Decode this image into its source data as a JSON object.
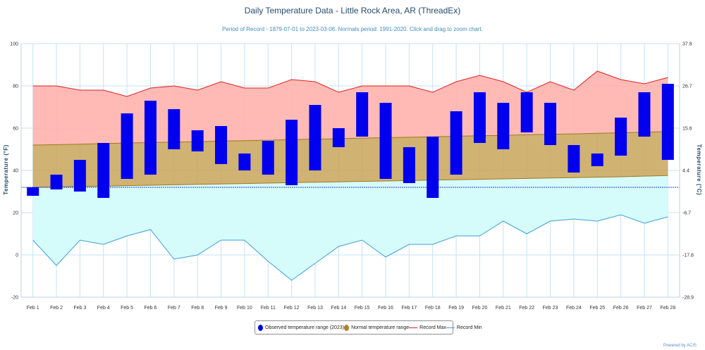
{
  "header": {
    "title": "Daily Temperature Data - Little Rock Area, AR (ThreadEx)",
    "subtitle": "Period of Record - 1879-07-01 to 2023-03-06. Normals period: 1991-2020. Click and drag to zoom chart."
  },
  "legend": {
    "observed": "Observed temperature range (2023)",
    "normal": "Normal temperature range",
    "record_max": "Record Max",
    "record_min": "Record Min"
  },
  "credit": "Powered by ACIS",
  "colors": {
    "observed": "#0000ee",
    "normal_fill": "#c8a55a",
    "normal_line": "#a07820",
    "record_max": "#e02020",
    "record_max_fill": "#ffb3ad",
    "record_min": "#3aa0d8",
    "record_min_fill": "#d6fbfb",
    "grid": "#c6e2f7"
  },
  "chart_data": {
    "type": "bar",
    "title": "Daily Temperature Data - Little Rock Area, AR (ThreadEx)",
    "xlabel": "",
    "ylabel": "Temperature (°F)",
    "ylabel_right": "Temperature (°C)",
    "ylim": [
      -20,
      100
    ],
    "yticks": [
      "-20",
      "0",
      "20",
      "40",
      "60",
      "80",
      "100"
    ],
    "yticks_right": [
      "-28.9",
      "-17.8",
      "-6.7",
      "4.4",
      "15.6",
      "26.7",
      "37.8"
    ],
    "categories": [
      "Feb 1",
      "Feb 2",
      "Feb 3",
      "Feb 4",
      "Feb 5",
      "Feb 6",
      "Feb 7",
      "Feb 8",
      "Feb 9",
      "Feb 10",
      "Feb 11",
      "Feb 12",
      "Feb 13",
      "Feb 14",
      "Feb 15",
      "Feb 16",
      "Feb 17",
      "Feb 18",
      "Feb 19",
      "Feb 20",
      "Feb 21",
      "Feb 22",
      "Feb 23",
      "Feb 24",
      "Feb 25",
      "Feb 26",
      "Feb 27",
      "Feb 28"
    ],
    "freezing_line": 32,
    "series": [
      {
        "name": "Observed temperature range (2023)",
        "low": [
          28,
          31,
          30,
          27,
          36,
          38,
          50,
          49,
          43,
          40,
          38,
          33,
          40,
          51,
          56,
          36,
          34,
          27,
          38,
          53,
          50,
          58,
          52,
          39,
          42,
          47,
          56,
          45
        ],
        "high": [
          32,
          38,
          45,
          53,
          67,
          73,
          69,
          59,
          61,
          48,
          54,
          64,
          71,
          60,
          77,
          72,
          51,
          56,
          68,
          77,
          72,
          77,
          72,
          52,
          48,
          65,
          77,
          81
        ]
      },
      {
        "name": "Normal temperature range",
        "low": [
          32,
          32.2,
          32.4,
          32.6,
          32.8,
          33,
          33.2,
          33.4,
          33.6,
          33.8,
          34,
          34.2,
          34.4,
          34.6,
          34.8,
          35,
          35.2,
          35.4,
          35.6,
          35.8,
          36,
          36.2,
          36.4,
          36.6,
          36.8,
          37,
          37.3,
          37.6
        ],
        "high": [
          52,
          52.2,
          52.4,
          52.7,
          53,
          53.2,
          53.4,
          53.6,
          53.9,
          54.1,
          54.3,
          54.6,
          54.8,
          55,
          55.3,
          55.5,
          55.7,
          55.9,
          56.2,
          56.4,
          56.6,
          56.9,
          57.1,
          57.3,
          57.6,
          57.8,
          58.1,
          58.4
        ]
      },
      {
        "name": "Record Max",
        "values": [
          80,
          80,
          78,
          78,
          75,
          79,
          80,
          78,
          82,
          79,
          79,
          83,
          82,
          77,
          80,
          80,
          80,
          77,
          82,
          85,
          82,
          77,
          82,
          78,
          87,
          83,
          81,
          84
        ]
      },
      {
        "name": "Record Min",
        "values": [
          7,
          -5,
          7,
          5,
          9,
          12,
          -2,
          0,
          7,
          7,
          -3,
          -12,
          -4,
          4,
          7,
          -1,
          5,
          5,
          9,
          9,
          16,
          10,
          16,
          17,
          16,
          19,
          15,
          18
        ]
      }
    ]
  }
}
